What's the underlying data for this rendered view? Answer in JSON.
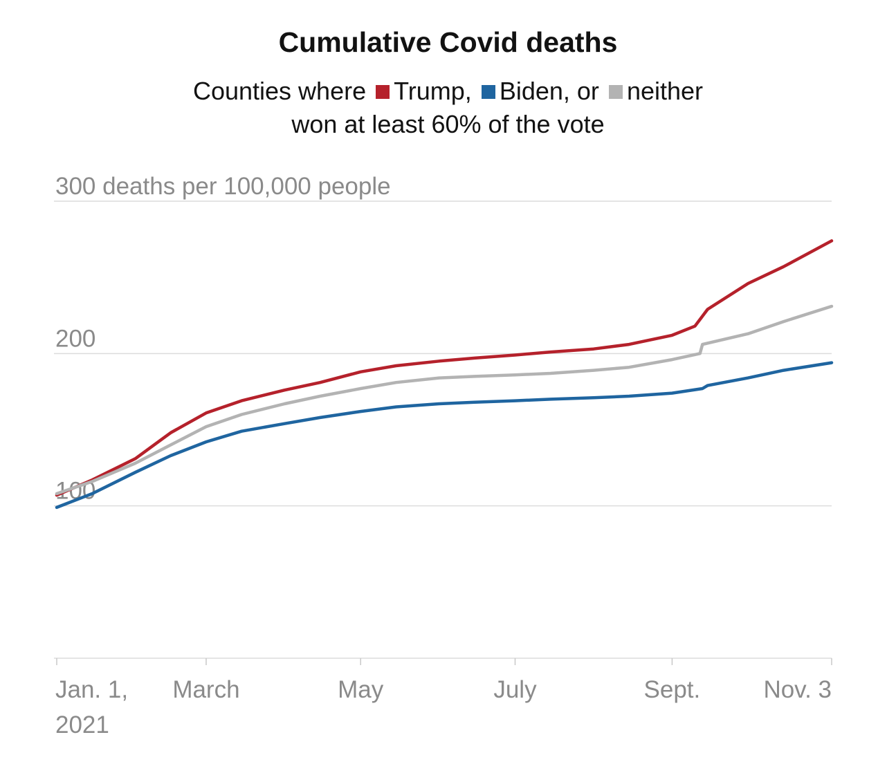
{
  "chart_data": {
    "type": "line",
    "title": "Cumulative Covid deaths",
    "subtitle": {
      "prefix": "Counties where",
      "line2": "won at least 60% of the vote"
    },
    "ylabel": "300 deaths per 100,000 people",
    "ylim": [
      0,
      300
    ],
    "y_ticks": [
      {
        "value": 100,
        "label": "100"
      },
      {
        "value": 200,
        "label": "200"
      },
      {
        "value": 300,
        "label": "300 deaths per 100,000 people"
      }
    ],
    "x_domain": [
      "2021-01-01",
      "2021-11-03"
    ],
    "x_ticks": [
      {
        "date": "2021-01-01",
        "label": "Jan. 1,",
        "label2": "2021"
      },
      {
        "date": "2021-03-01",
        "label": "March"
      },
      {
        "date": "2021-05-01",
        "label": "May"
      },
      {
        "date": "2021-07-01",
        "label": "July"
      },
      {
        "date": "2021-09-01",
        "label": "Sept."
      },
      {
        "date": "2021-11-03",
        "label": "Nov. 3"
      }
    ],
    "grid": true,
    "series": [
      {
        "name": "Trump,",
        "color": "#b5212b",
        "points": [
          [
            "2021-01-01",
            107
          ],
          [
            "2021-01-15",
            117
          ],
          [
            "2021-02-01",
            131
          ],
          [
            "2021-02-15",
            148
          ],
          [
            "2021-03-01",
            161
          ],
          [
            "2021-03-15",
            169
          ],
          [
            "2021-04-01",
            176
          ],
          [
            "2021-04-15",
            181
          ],
          [
            "2021-05-01",
            188
          ],
          [
            "2021-05-15",
            192
          ],
          [
            "2021-06-01",
            195
          ],
          [
            "2021-06-15",
            197
          ],
          [
            "2021-07-01",
            199
          ],
          [
            "2021-07-15",
            201
          ],
          [
            "2021-08-01",
            203
          ],
          [
            "2021-08-15",
            206
          ],
          [
            "2021-09-01",
            212
          ],
          [
            "2021-09-10",
            218
          ],
          [
            "2021-09-15",
            229
          ],
          [
            "2021-10-01",
            246
          ],
          [
            "2021-10-15",
            257
          ],
          [
            "2021-11-03",
            274
          ]
        ]
      },
      {
        "name": "Biden, or",
        "color": "#1f65a0",
        "points": [
          [
            "2021-01-01",
            99
          ],
          [
            "2021-01-15",
            108
          ],
          [
            "2021-02-01",
            122
          ],
          [
            "2021-02-15",
            133
          ],
          [
            "2021-03-01",
            142
          ],
          [
            "2021-03-15",
            149
          ],
          [
            "2021-04-01",
            154
          ],
          [
            "2021-04-15",
            158
          ],
          [
            "2021-05-01",
            162
          ],
          [
            "2021-05-15",
            165
          ],
          [
            "2021-06-01",
            167
          ],
          [
            "2021-06-15",
            168
          ],
          [
            "2021-07-01",
            169
          ],
          [
            "2021-07-15",
            170
          ],
          [
            "2021-08-01",
            171
          ],
          [
            "2021-08-15",
            172
          ],
          [
            "2021-09-01",
            174
          ],
          [
            "2021-09-13",
            177
          ],
          [
            "2021-09-15",
            179
          ],
          [
            "2021-10-01",
            184
          ],
          [
            "2021-10-15",
            189
          ],
          [
            "2021-11-03",
            194
          ]
        ]
      },
      {
        "name": "neither",
        "color": "#b3b3b3",
        "points": [
          [
            "2021-01-01",
            108
          ],
          [
            "2021-01-15",
            116
          ],
          [
            "2021-02-01",
            128
          ],
          [
            "2021-02-15",
            140
          ],
          [
            "2021-03-01",
            152
          ],
          [
            "2021-03-15",
            160
          ],
          [
            "2021-04-01",
            167
          ],
          [
            "2021-04-15",
            172
          ],
          [
            "2021-05-01",
            177
          ],
          [
            "2021-05-15",
            181
          ],
          [
            "2021-06-01",
            184
          ],
          [
            "2021-06-15",
            185
          ],
          [
            "2021-07-01",
            186
          ],
          [
            "2021-07-15",
            187
          ],
          [
            "2021-08-01",
            189
          ],
          [
            "2021-08-15",
            191
          ],
          [
            "2021-09-01",
            196
          ],
          [
            "2021-09-12",
            200
          ],
          [
            "2021-09-13",
            206
          ],
          [
            "2021-10-01",
            213
          ],
          [
            "2021-10-15",
            221
          ],
          [
            "2021-11-03",
            231
          ]
        ]
      }
    ]
  }
}
